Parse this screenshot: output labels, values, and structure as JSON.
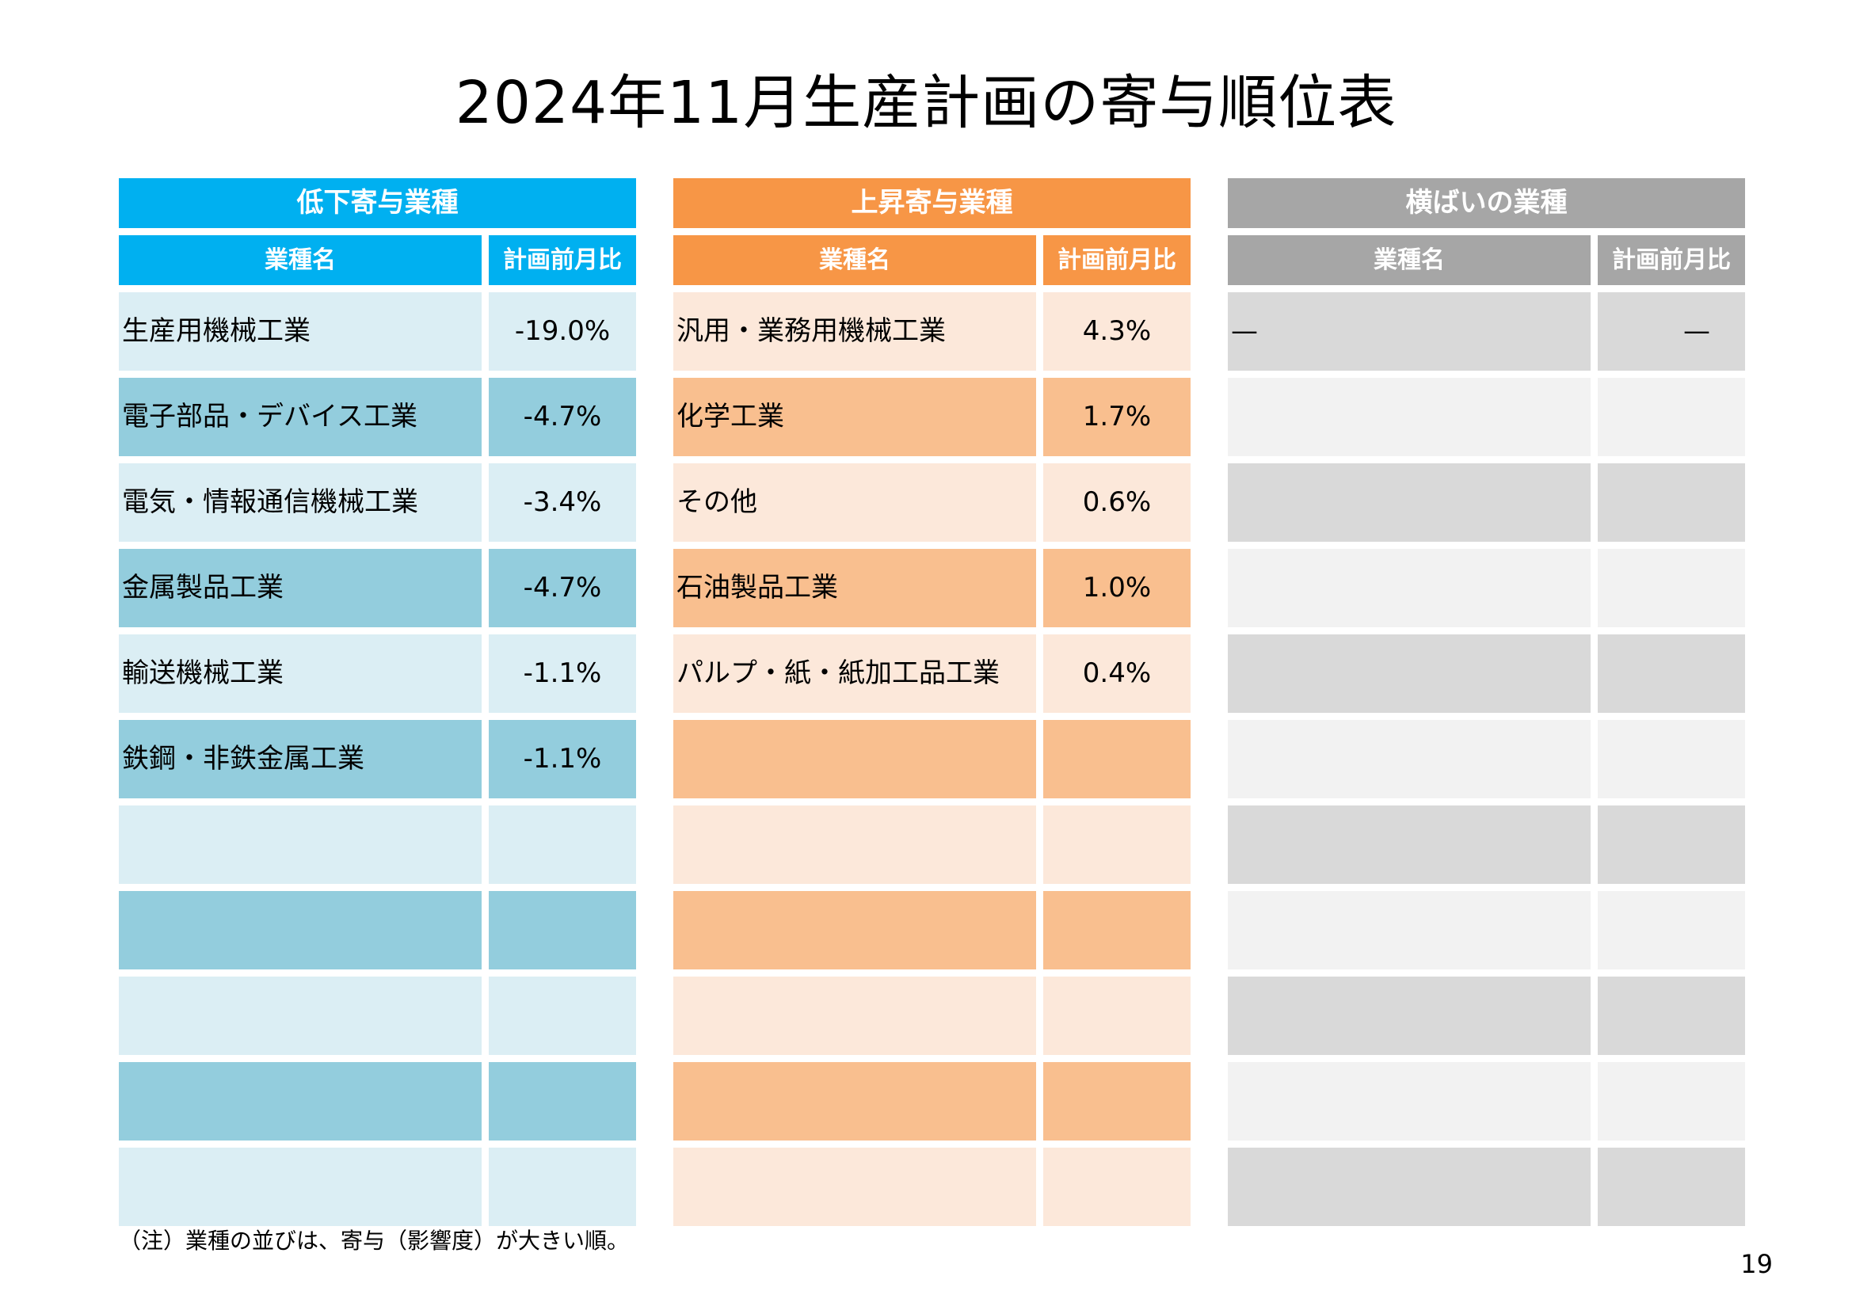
{
  "title": "2024年11月生産計画の寄与順位表",
  "columns": {
    "name": "業種名",
    "ratio": "計画前月比"
  },
  "tables": {
    "decrease": {
      "heading": "低下寄与業種",
      "rows": [
        {
          "name": "生産用機械工業",
          "value": "-19.0%"
        },
        {
          "name": "電子部品・デバイス工業",
          "value": "-4.7%"
        },
        {
          "name": "電気・情報通信機械工業",
          "value": "-3.4%"
        },
        {
          "name": "金属製品工業",
          "value": "-4.7%"
        },
        {
          "name": "輸送機械工業",
          "value": "-1.1%"
        },
        {
          "name": "鉄鋼・非鉄金属工業",
          "value": "-1.1%"
        },
        {
          "name": "",
          "value": ""
        },
        {
          "name": "",
          "value": ""
        },
        {
          "name": "",
          "value": ""
        },
        {
          "name": "",
          "value": ""
        },
        {
          "name": "",
          "value": ""
        }
      ]
    },
    "increase": {
      "heading": "上昇寄与業種",
      "rows": [
        {
          "name": "汎用・業務用機械工業",
          "value": "4.3%"
        },
        {
          "name": "化学工業",
          "value": "1.7%"
        },
        {
          "name": "その他",
          "value": "0.6%"
        },
        {
          "name": "石油製品工業",
          "value": "1.0%"
        },
        {
          "name": "パルプ・紙・紙加工品工業",
          "value": "0.4%"
        },
        {
          "name": "",
          "value": ""
        },
        {
          "name": "",
          "value": ""
        },
        {
          "name": "",
          "value": ""
        },
        {
          "name": "",
          "value": ""
        },
        {
          "name": "",
          "value": ""
        },
        {
          "name": "",
          "value": ""
        }
      ]
    },
    "flat": {
      "heading": "横ばいの業種",
      "rows": [
        {
          "name": "—",
          "value": "—"
        },
        {
          "name": "",
          "value": ""
        },
        {
          "name": "",
          "value": ""
        },
        {
          "name": "",
          "value": ""
        },
        {
          "name": "",
          "value": ""
        },
        {
          "name": "",
          "value": ""
        },
        {
          "name": "",
          "value": ""
        },
        {
          "name": "",
          "value": ""
        },
        {
          "name": "",
          "value": ""
        },
        {
          "name": "",
          "value": ""
        },
        {
          "name": "",
          "value": ""
        }
      ]
    }
  },
  "note": "（注）業種の並びは、寄与（影響度）が大きい順。",
  "page_number": "19"
}
